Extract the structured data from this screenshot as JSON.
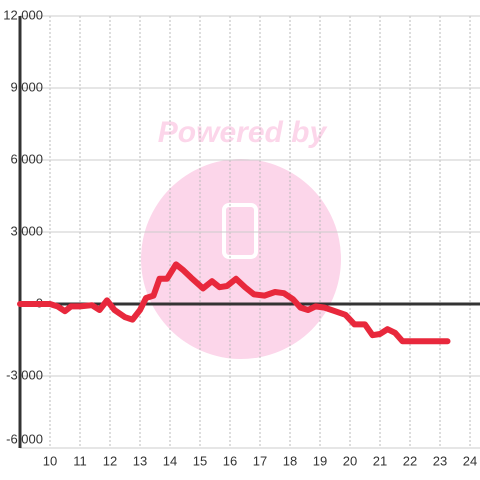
{
  "chart_data": {
    "type": "line",
    "watermark": "Powered by",
    "x": [
      9.0,
      10.0,
      10.25,
      10.5,
      10.7,
      11.0,
      11.4,
      11.65,
      11.9,
      12.15,
      12.5,
      12.75,
      13.0,
      13.2,
      13.45,
      13.65,
      13.9,
      14.2,
      14.45,
      14.7,
      15.1,
      15.4,
      15.65,
      15.9,
      16.2,
      16.5,
      16.8,
      17.15,
      17.5,
      17.8,
      18.1,
      18.35,
      18.6,
      18.85,
      19.15,
      19.5,
      19.85,
      20.15,
      20.5,
      20.75,
      21.0,
      21.25,
      21.5,
      21.75,
      23.25
    ],
    "series": [
      {
        "color": "#e8283c",
        "values": [
          0,
          0,
          -100,
          -300,
          -100,
          -100,
          -50,
          -250,
          150,
          -250,
          -550,
          -650,
          -250,
          250,
          350,
          1050,
          1050,
          1650,
          1400,
          1100,
          650,
          950,
          700,
          750,
          1050,
          700,
          400,
          350,
          500,
          450,
          200,
          -150,
          -250,
          -100,
          -150,
          -300,
          -450,
          -850,
          -850,
          -1300,
          -1250,
          -1050,
          -1200,
          -1550,
          -1550
        ]
      }
    ],
    "xlim": [
      9,
      24.333
    ],
    "xticks": [
      10,
      11,
      12,
      13,
      14,
      15,
      16,
      17,
      18,
      19,
      20,
      21,
      22,
      23,
      24
    ],
    "ylim": [
      -6000,
      12000
    ],
    "yticks": [
      {
        "value": -6000,
        "label": "-6,000"
      },
      {
        "value": -3000,
        "label": "-3,000"
      },
      0,
      {
        "value": 3000,
        "label": "3,000"
      },
      {
        "value": 6000,
        "label": "6,000"
      },
      {
        "value": 9000,
        "label": "9,000"
      },
      {
        "value": 12000,
        "label": "12,000"
      }
    ],
    "grid": true
  }
}
